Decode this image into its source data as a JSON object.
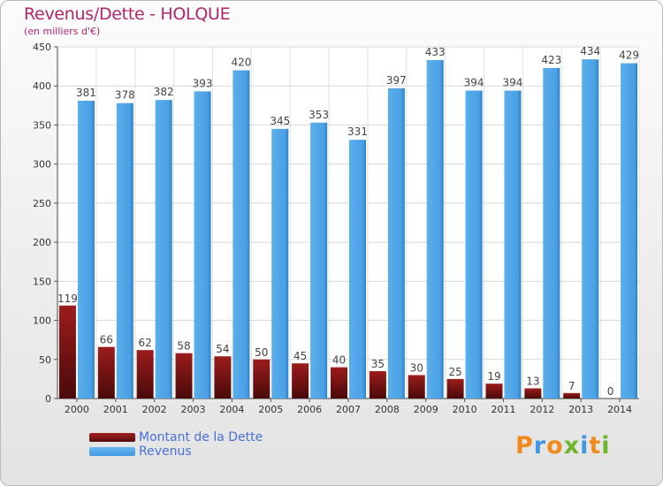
{
  "title": "Revenus/Dette - HOLQUE",
  "subtitle": "(en milliers d'€)",
  "colors": {
    "title": "#b0266b",
    "dette": "#7a1515",
    "revenus": "#3f98e0",
    "legend_text": "#4a6fd6"
  },
  "legend": [
    {
      "label": "Montant de la Dette",
      "color": "#7a1515"
    },
    {
      "label": "Revenus",
      "color": "#3f98e0"
    }
  ],
  "logo": {
    "text": "Proxiti",
    "letters": [
      "P",
      "r",
      "o",
      "x",
      "i",
      "t",
      "i"
    ]
  },
  "chart_data": {
    "type": "bar",
    "categories": [
      "2000",
      "2001",
      "2002",
      "2003",
      "2004",
      "2005",
      "2006",
      "2007",
      "2008",
      "2009",
      "2010",
      "2011",
      "2012",
      "2013",
      "2014"
    ],
    "series": [
      {
        "name": "Montant de la Dette",
        "values": [
          119,
          66,
          62,
          58,
          54,
          50,
          45,
          40,
          35,
          30,
          25,
          19,
          13,
          7,
          0
        ]
      },
      {
        "name": "Revenus",
        "values": [
          381,
          378,
          382,
          393,
          420,
          345,
          353,
          331,
          397,
          433,
          394,
          394,
          423,
          434,
          429
        ]
      }
    ],
    "ylim": [
      0,
      450
    ],
    "yticks": [
      0,
      50,
      100,
      150,
      200,
      250,
      300,
      350,
      400,
      450
    ],
    "grid": true,
    "legend_position": "bottom-left"
  }
}
